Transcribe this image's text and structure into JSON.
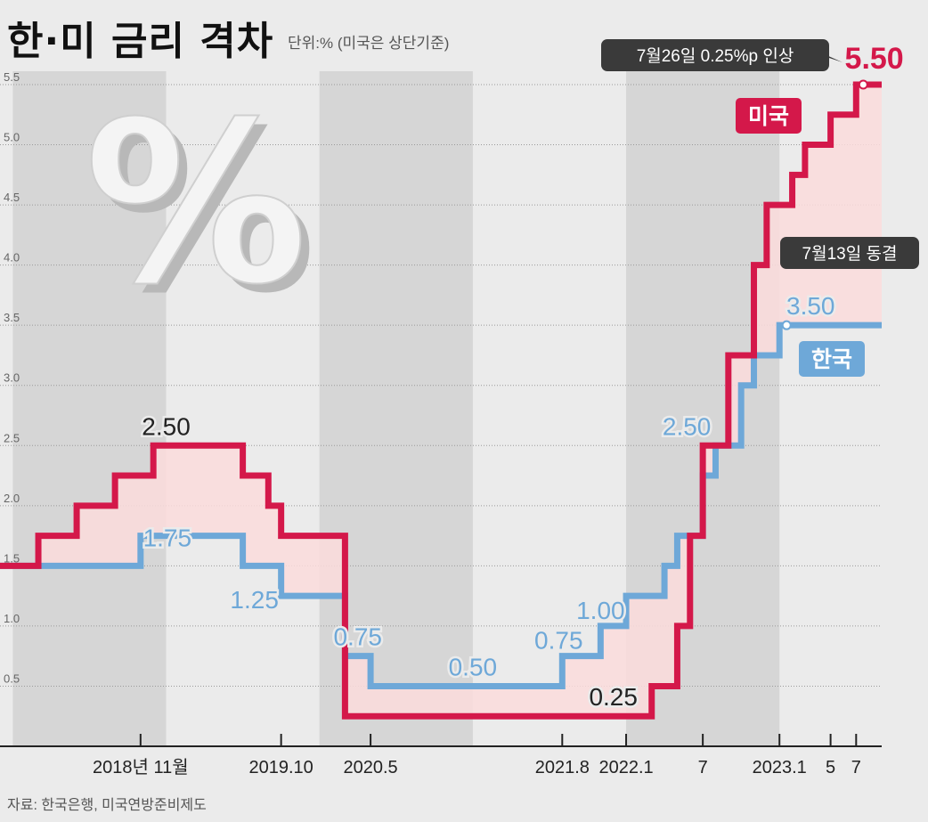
{
  "title": "한·미 금리 격차",
  "unit_note": "단위:% (미국은 상단기준)",
  "source": "자료: 한국은행, 미국연방준비제도",
  "colors": {
    "us": "#d4184a",
    "kr": "#6ea8d8",
    "gap_fill": "#fcdcdc",
    "band": "#d6d6d6",
    "bg": "#ebebeb"
  },
  "chart_data": {
    "type": "line",
    "step": true,
    "ylim": [
      0,
      5.5
    ],
    "yticks": [
      "0.5",
      "1.0",
      "1.5",
      "2.0",
      "2.5",
      "3.0",
      "3.5",
      "4.0",
      "4.5",
      "5.0",
      "5.5"
    ],
    "ytick_values": [
      0.5,
      1.0,
      1.5,
      2.0,
      2.5,
      3.0,
      3.5,
      4.0,
      4.5,
      5.0,
      5.5
    ],
    "xticks": [
      {
        "label": "2018년 11월",
        "date": "2018-11"
      },
      {
        "label": "2019.10",
        "date": "2019-10"
      },
      {
        "label": "2020.5",
        "date": "2020-05"
      },
      {
        "label": "2021.8",
        "date": "2021-08"
      },
      {
        "label": "2022.1",
        "date": "2022-01"
      },
      {
        "label": "7",
        "date": "2022-07"
      },
      {
        "label": "2023.1",
        "date": "2023-01"
      },
      {
        "label": "5",
        "date": "2023-05"
      },
      {
        "label": "7",
        "date": "2023-07"
      }
    ],
    "x_range": [
      "2017-12",
      "2023-09"
    ],
    "shaded_years": [
      [
        "2018-01",
        "2019-01"
      ],
      [
        "2020-01",
        "2021-01"
      ],
      [
        "2022-01",
        "2023-01"
      ]
    ],
    "series": [
      {
        "name": "미국",
        "key": "us",
        "points": [
          [
            "2017-12",
            1.5
          ],
          [
            "2018-03",
            1.75
          ],
          [
            "2018-06",
            2.0
          ],
          [
            "2018-09",
            2.25
          ],
          [
            "2018-12",
            2.5
          ],
          [
            "2019-07",
            2.25
          ],
          [
            "2019-09",
            2.0
          ],
          [
            "2019-10",
            1.75
          ],
          [
            "2020-03",
            0.25
          ],
          [
            "2022-03",
            0.5
          ],
          [
            "2022-05",
            1.0
          ],
          [
            "2022-06",
            1.75
          ],
          [
            "2022-07",
            2.5
          ],
          [
            "2022-09",
            3.25
          ],
          [
            "2022-11",
            4.0
          ],
          [
            "2022-12",
            4.5
          ],
          [
            "2023-02",
            4.75
          ],
          [
            "2023-03",
            5.0
          ],
          [
            "2023-05",
            5.25
          ],
          [
            "2023-07",
            5.5
          ]
        ],
        "end": "2023-09"
      },
      {
        "name": "한국",
        "key": "kr",
        "points": [
          [
            "2017-12",
            1.5
          ],
          [
            "2018-11",
            1.75
          ],
          [
            "2019-07",
            1.5
          ],
          [
            "2019-10",
            1.25
          ],
          [
            "2020-03",
            0.75
          ],
          [
            "2020-05",
            0.5
          ],
          [
            "2021-08",
            0.75
          ],
          [
            "2021-11",
            1.0
          ],
          [
            "2022-01",
            1.25
          ],
          [
            "2022-04",
            1.5
          ],
          [
            "2022-05",
            1.75
          ],
          [
            "2022-07",
            2.25
          ],
          [
            "2022-08",
            2.5
          ],
          [
            "2022-10",
            3.0
          ],
          [
            "2022-11",
            3.25
          ],
          [
            "2023-01",
            3.5
          ]
        ],
        "end": "2023-09"
      }
    ],
    "annotations": [
      {
        "text": "2.50",
        "date": "2019-01",
        "value": 2.5,
        "color": "#222"
      },
      {
        "text": "1.75",
        "date": "2018-11",
        "value": 1.75,
        "color": "kr"
      },
      {
        "text": "1.25",
        "date": "2019-10",
        "value": 1.25,
        "color": "kr"
      },
      {
        "text": "0.75",
        "date": "2020-04",
        "value": 0.75,
        "color": "kr"
      },
      {
        "text": "0.50",
        "date": "2021-01",
        "value": 0.5,
        "color": "kr"
      },
      {
        "text": "0.75",
        "date": "2021-08",
        "value": 0.75,
        "color": "kr"
      },
      {
        "text": "1.00",
        "date": "2021-11",
        "value": 1.0,
        "color": "kr"
      },
      {
        "text": "0.25",
        "date": "2021-12",
        "value": 0.25,
        "color": "#222"
      },
      {
        "text": "2.50",
        "date": "2022-07",
        "value": 2.5,
        "color": "kr"
      },
      {
        "text": "3.50",
        "date": "2023-04",
        "value": 3.5,
        "color": "kr"
      },
      {
        "text": "5.50",
        "date": "2023-08",
        "value": 5.5,
        "color": "us"
      }
    ],
    "legend": {
      "us_label": "미국",
      "kr_label": "한국"
    },
    "callouts": {
      "us": "7월26일 0.25%p 인상",
      "kr": "7월13일 동결"
    }
  }
}
